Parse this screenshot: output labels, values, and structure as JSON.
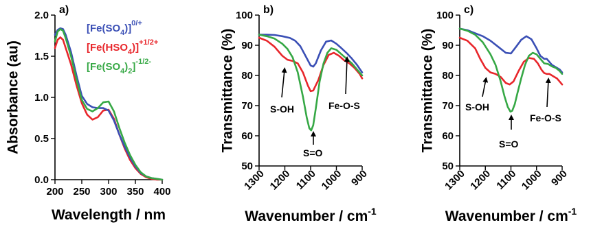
{
  "chart_data": [
    {
      "type": "line",
      "panel_label": "a)",
      "xlabel": "Wavelength / nm",
      "ylabel": "Absorbance (au)",
      "xlim": [
        200,
        400
      ],
      "ylim": [
        0,
        2.0
      ],
      "x_ticks": [
        "200",
        "250",
        "300",
        "350",
        "400"
      ],
      "y_ticks": [
        "0.0",
        "0.5",
        "1.0",
        "1.5",
        "2.0"
      ],
      "legend_position": "top-right",
      "legend": [
        {
          "base": "[Fe(SO",
          "sub": "4",
          "mid": ")]",
          "sup": "0/+",
          "color": "#3a4fb5"
        },
        {
          "base": "[Fe(HSO",
          "sub": "4",
          "mid": ")]",
          "sup": "+1/2+",
          "color": "#e8262b"
        },
        {
          "base": "[Fe(SO",
          "sub": "4",
          "mid": ")",
          "sub2": "2",
          "tail": "]",
          "sup": "-1/2-",
          "color": "#36a845"
        }
      ],
      "series": [
        {
          "name": "[Fe(SO4)]0/+",
          "color": "#3a4fb5",
          "x": [
            200,
            205,
            210,
            215,
            220,
            230,
            240,
            250,
            260,
            270,
            280,
            290,
            300,
            310,
            320,
            330,
            340,
            350,
            360,
            370,
            380,
            390,
            400
          ],
          "y": [
            1.76,
            1.82,
            1.84,
            1.83,
            1.76,
            1.55,
            1.27,
            1.02,
            0.92,
            0.88,
            0.87,
            0.87,
            0.84,
            0.72,
            0.55,
            0.4,
            0.27,
            0.16,
            0.08,
            0.04,
            0.02,
            0.01,
            0.0
          ]
        },
        {
          "name": "[Fe(HSO4)]+1/2+",
          "color": "#e8262b",
          "x": [
            200,
            205,
            210,
            215,
            220,
            230,
            240,
            250,
            260,
            270,
            280,
            290,
            300,
            310,
            320,
            330,
            340,
            350,
            360,
            370,
            380,
            390,
            400
          ],
          "y": [
            1.6,
            1.7,
            1.73,
            1.7,
            1.6,
            1.4,
            1.15,
            0.93,
            0.79,
            0.73,
            0.76,
            0.84,
            0.85,
            0.74,
            0.55,
            0.38,
            0.24,
            0.14,
            0.07,
            0.03,
            0.01,
            0.0,
            0.0
          ]
        },
        {
          "name": "[Fe(SO4)2]-1/2-",
          "color": "#36a845",
          "x": [
            200,
            205,
            210,
            215,
            220,
            230,
            240,
            250,
            260,
            270,
            280,
            290,
            300,
            310,
            320,
            330,
            340,
            350,
            360,
            370,
            380,
            390,
            400
          ],
          "y": [
            1.68,
            1.8,
            1.83,
            1.81,
            1.72,
            1.5,
            1.22,
            0.97,
            0.86,
            0.83,
            0.87,
            0.94,
            0.95,
            0.83,
            0.63,
            0.45,
            0.3,
            0.18,
            0.09,
            0.04,
            0.02,
            0.01,
            0.0
          ]
        }
      ]
    },
    {
      "type": "line",
      "panel_label": "b)",
      "xlabel": "Wavenumber / cm",
      "xlabel_sup": "-1",
      "ylabel": "Transmittance (%)",
      "xlim": [
        1300,
        900
      ],
      "ylim": [
        50,
        100
      ],
      "x_ticks": [
        "1300",
        "1200",
        "1100",
        "1000",
        "900"
      ],
      "y_ticks": [
        "50",
        "60",
        "70",
        "80",
        "90",
        "100"
      ],
      "annotations": [
        "S-OH",
        "S=O",
        "Fe-O-S"
      ],
      "series": [
        {
          "name": "[Fe(SO4)]0/+",
          "color": "#3a4fb5",
          "x": [
            1300,
            1270,
            1240,
            1210,
            1180,
            1160,
            1140,
            1120,
            1100,
            1090,
            1080,
            1060,
            1040,
            1020,
            1000,
            980,
            960,
            940,
            920,
            900
          ],
          "y": [
            93.5,
            93.5,
            93.4,
            93.0,
            92.4,
            91.5,
            89.7,
            86.5,
            83.3,
            82.9,
            84.0,
            88.3,
            91.2,
            91.6,
            90.5,
            89.0,
            87.4,
            85.6,
            83.5,
            81.0
          ]
        },
        {
          "name": "[Fe(HSO4)]+1/2+",
          "color": "#e8262b",
          "x": [
            1300,
            1270,
            1240,
            1210,
            1190,
            1170,
            1150,
            1130,
            1110,
            1100,
            1090,
            1070,
            1050,
            1030,
            1010,
            990,
            970,
            950,
            930,
            910,
            900
          ],
          "y": [
            92.5,
            91.5,
            89.5,
            86.5,
            85.2,
            84.8,
            84.0,
            81.0,
            76.5,
            74.8,
            75.0,
            78.5,
            83.5,
            86.8,
            87.5,
            86.5,
            85.0,
            84.0,
            82.5,
            80.5,
            79.0
          ]
        },
        {
          "name": "[Fe(SO4)2]-1/2-",
          "color": "#36a845",
          "x": [
            1300,
            1270,
            1240,
            1210,
            1190,
            1170,
            1150,
            1130,
            1115,
            1105,
            1098,
            1090,
            1080,
            1065,
            1050,
            1035,
            1020,
            1000,
            980,
            960,
            940,
            920,
            900
          ],
          "y": [
            93.5,
            93.0,
            92.2,
            90.5,
            88.8,
            86.0,
            81.0,
            73.0,
            66.0,
            62.5,
            61.8,
            63.5,
            69.0,
            78.0,
            84.0,
            87.5,
            89.0,
            88.5,
            87.0,
            85.5,
            84.0,
            82.0,
            80.0
          ]
        }
      ]
    },
    {
      "type": "line",
      "panel_label": "c)",
      "xlabel": "Wavenumber / cm",
      "xlabel_sup": "-1",
      "ylabel": "Transmittance (%)",
      "xlim": [
        1300,
        900
      ],
      "ylim": [
        50,
        100
      ],
      "x_ticks": [
        "1300",
        "1200",
        "1100",
        "1000",
        "900"
      ],
      "y_ticks": [
        "50",
        "60",
        "70",
        "80",
        "90",
        "100"
      ],
      "annotations": [
        "S-OH",
        "S=O",
        "Fe-O-S"
      ],
      "series": [
        {
          "name": "[Fe(SO4)]0/+",
          "color": "#3a4fb5",
          "x": [
            1300,
            1270,
            1240,
            1210,
            1180,
            1150,
            1120,
            1100,
            1080,
            1060,
            1040,
            1020,
            1000,
            985,
            970,
            960,
            950,
            940,
            930,
            920,
            910,
            900
          ],
          "y": [
            95.5,
            95.0,
            94.0,
            93.0,
            91.5,
            89.5,
            87.5,
            87.3,
            89.5,
            91.8,
            93.0,
            92.0,
            89.0,
            86.5,
            85.5,
            85.5,
            84.5,
            83.5,
            83.0,
            82.5,
            82.0,
            81.0
          ]
        },
        {
          "name": "[Fe(HSO4)]+1/2+",
          "color": "#e8262b",
          "x": [
            1300,
            1270,
            1240,
            1220,
            1200,
            1180,
            1160,
            1140,
            1120,
            1105,
            1090,
            1070,
            1050,
            1030,
            1010,
            995,
            980,
            970,
            960,
            950,
            940,
            930,
            920,
            910,
            900
          ],
          "y": [
            92.5,
            91.5,
            89.0,
            85.5,
            82.5,
            81.0,
            80.5,
            79.5,
            77.5,
            77.0,
            78.0,
            81.5,
            84.5,
            85.8,
            85.5,
            84.0,
            81.8,
            80.8,
            80.5,
            80.5,
            80.0,
            79.5,
            79.0,
            78.0,
            77.0
          ]
        },
        {
          "name": "[Fe(SO4)2]-1/2-",
          "color": "#36a845",
          "x": [
            1300,
            1270,
            1240,
            1210,
            1180,
            1160,
            1140,
            1125,
            1112,
            1102,
            1095,
            1085,
            1075,
            1060,
            1045,
            1030,
            1015,
            1000,
            985,
            970,
            955,
            940,
            925,
            910,
            900
          ],
          "y": [
            95.5,
            94.8,
            93.5,
            91.0,
            87.0,
            83.5,
            78.0,
            73.0,
            69.5,
            68.0,
            68.3,
            70.5,
            74.0,
            79.0,
            83.5,
            86.5,
            87.5,
            87.0,
            85.5,
            84.0,
            83.8,
            83.0,
            82.5,
            81.5,
            80.5
          ]
        }
      ]
    }
  ]
}
